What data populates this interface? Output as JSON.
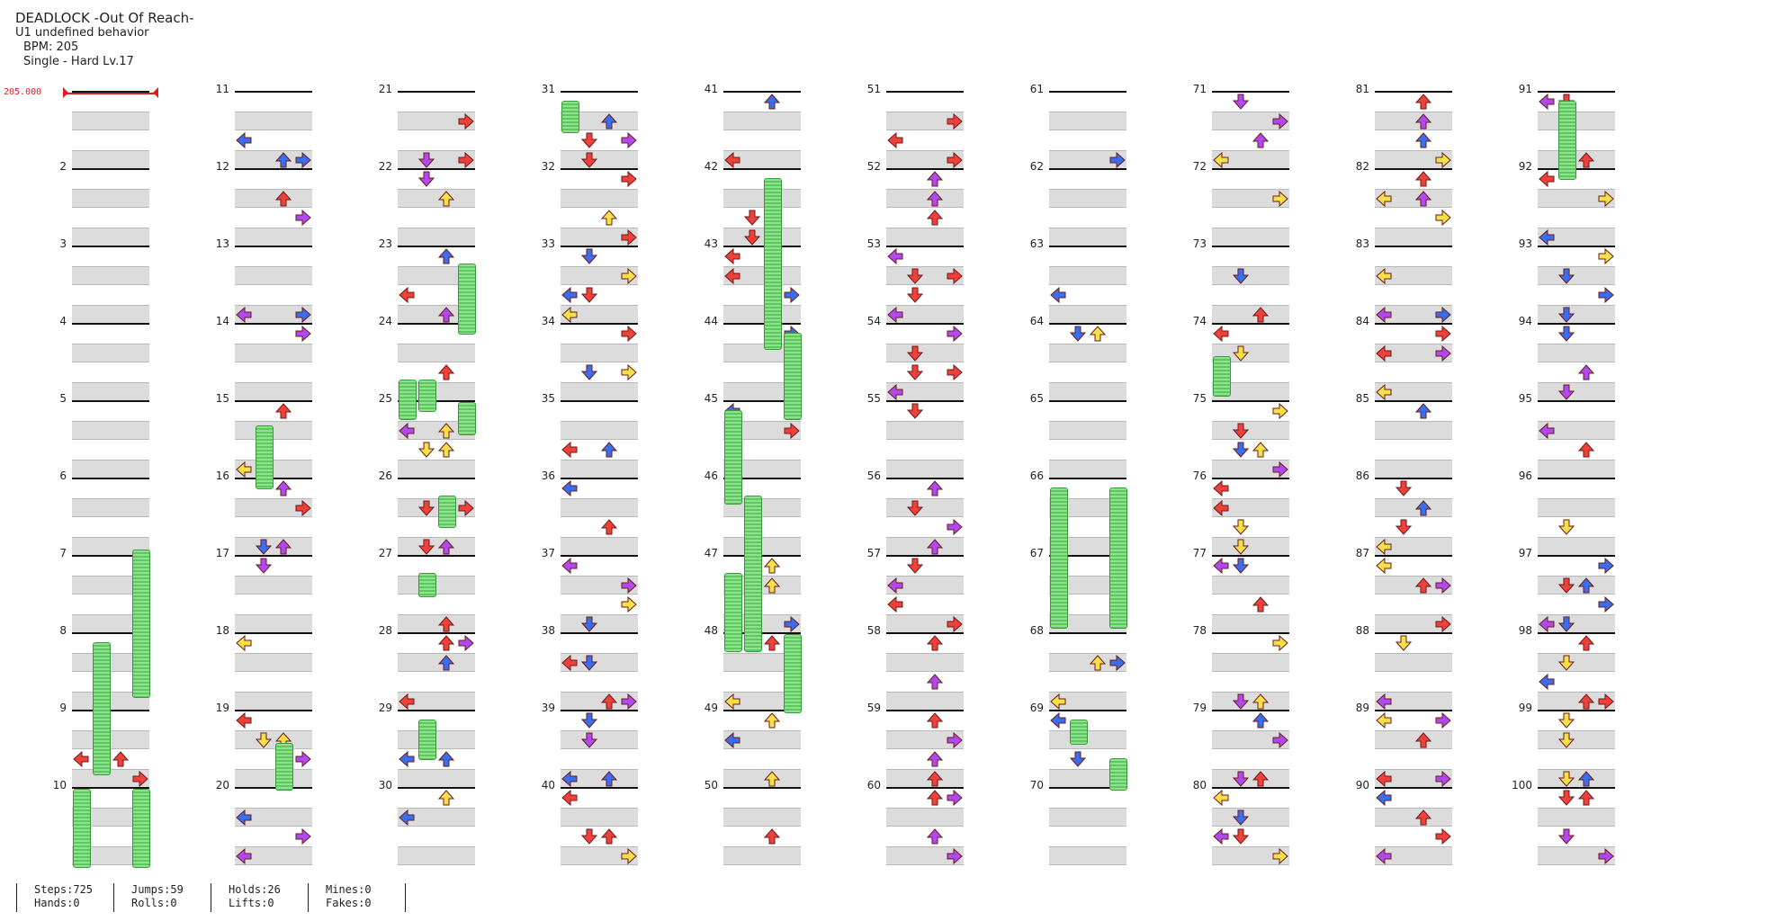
{
  "header": {
    "title": "DEADLOCK -Out Of Reach-",
    "artist": "U1 undefined behavior",
    "bpm": "BPM: 205",
    "difficulty": "Single - Hard  Lv.17"
  },
  "bpm_change": {
    "value": "205.000",
    "color": "#d92020"
  },
  "colors": {
    "red": "#f0403a",
    "blue": "#3a6ef0",
    "yellow": "#f5e04a",
    "purple": "#b04af0",
    "hold": "#7ddc7d",
    "measure_shade": "#dcdcdc"
  },
  "measure_numbers": [
    "2",
    "3",
    "4",
    "5",
    "6",
    "7",
    "8",
    "9",
    "10",
    "11",
    "12",
    "13",
    "14",
    "15",
    "16",
    "17",
    "18",
    "19",
    "20",
    "21",
    "22",
    "23",
    "24",
    "25",
    "26",
    "27",
    "28",
    "29",
    "30",
    "31",
    "32",
    "33",
    "34",
    "35",
    "36",
    "37",
    "38",
    "39",
    "40",
    "41",
    "42",
    "43",
    "44",
    "45",
    "46",
    "47",
    "48",
    "49",
    "50",
    "51",
    "52",
    "53",
    "54",
    "55",
    "56",
    "57",
    "58",
    "59",
    "60",
    "61",
    "62",
    "63",
    "64",
    "65",
    "66",
    "67",
    "68",
    "69",
    "70",
    "71",
    "72",
    "73",
    "74",
    "75",
    "76",
    "77",
    "78",
    "79",
    "80",
    "81",
    "82",
    "83",
    "84",
    "85",
    "86",
    "87",
    "88",
    "89",
    "90",
    "91",
    "92",
    "93",
    "94",
    "95",
    "96",
    "97",
    "98",
    "99",
    "100"
  ],
  "stats": {
    "steps": "Steps:725",
    "jumps": "Jumps:59",
    "holds": "Holds:26",
    "mines": "Mines:0",
    "hands": "Hands:0",
    "rolls": "Rolls:0",
    "lifts": "Lifts:0",
    "fakes": "Fakes:0"
  }
}
